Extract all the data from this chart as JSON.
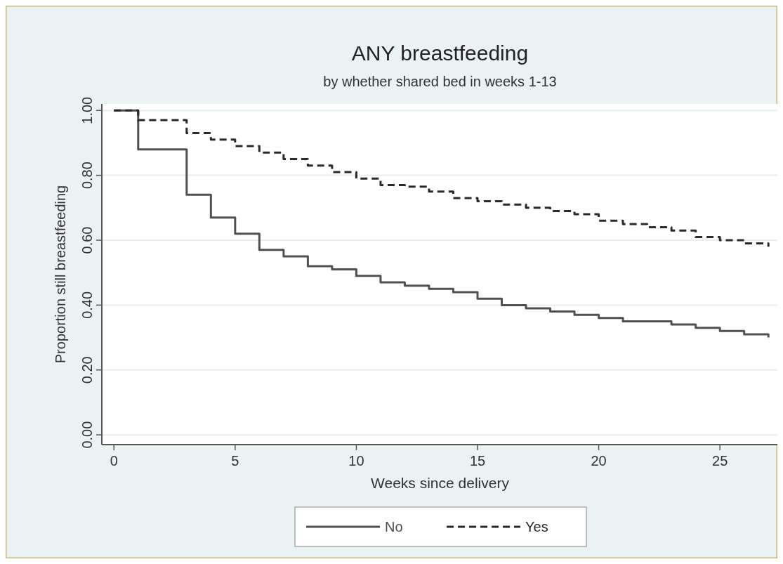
{
  "chart_data": {
    "type": "step",
    "title": "ANY breastfeeding",
    "subtitle": "by whether shared bed in weeks 1-13",
    "xlabel": "Weeks since delivery",
    "ylabel": "Proportion still breastfeeding",
    "xlim": [
      -0.5,
      27.4
    ],
    "xticks": [
      0,
      5,
      10,
      15,
      20,
      25
    ],
    "ylim": [
      -0.03,
      1.02
    ],
    "yticks": [
      {
        "value": 0,
        "label": "0.00"
      },
      {
        "value": 0.2,
        "label": "0.20"
      },
      {
        "value": 0.4,
        "label": "0.40"
      },
      {
        "value": 0.6,
        "label": "0.60"
      },
      {
        "value": 0.8,
        "label": "0.80"
      },
      {
        "value": 1,
        "label": "1.00"
      }
    ],
    "grid": "y",
    "legend": "bottom",
    "marker": "none",
    "x": [
      0,
      1,
      3,
      4,
      5,
      6,
      7,
      8,
      9,
      10,
      11,
      12,
      13,
      14,
      15,
      16,
      17,
      18,
      19,
      20,
      21,
      22,
      23,
      24,
      25,
      26,
      27
    ],
    "series": [
      {
        "name": "No",
        "color": "#505050",
        "line_style": "solid",
        "values": [
          1.0,
          0.88,
          0.74,
          0.67,
          0.62,
          0.57,
          0.55,
          0.52,
          0.51,
          0.49,
          0.47,
          0.46,
          0.45,
          0.44,
          0.42,
          0.4,
          0.39,
          0.38,
          0.37,
          0.36,
          0.35,
          0.35,
          0.34,
          0.33,
          0.32,
          0.31,
          0.3
        ]
      },
      {
        "name": "Yes",
        "color": "#2a2a2a",
        "line_style": "dashed",
        "values": [
          1.0,
          0.97,
          0.93,
          0.91,
          0.89,
          0.87,
          0.85,
          0.83,
          0.81,
          0.79,
          0.77,
          0.765,
          0.75,
          0.73,
          0.72,
          0.71,
          0.7,
          0.69,
          0.68,
          0.66,
          0.65,
          0.64,
          0.63,
          0.61,
          0.6,
          0.59,
          0.58
        ]
      }
    ]
  }
}
